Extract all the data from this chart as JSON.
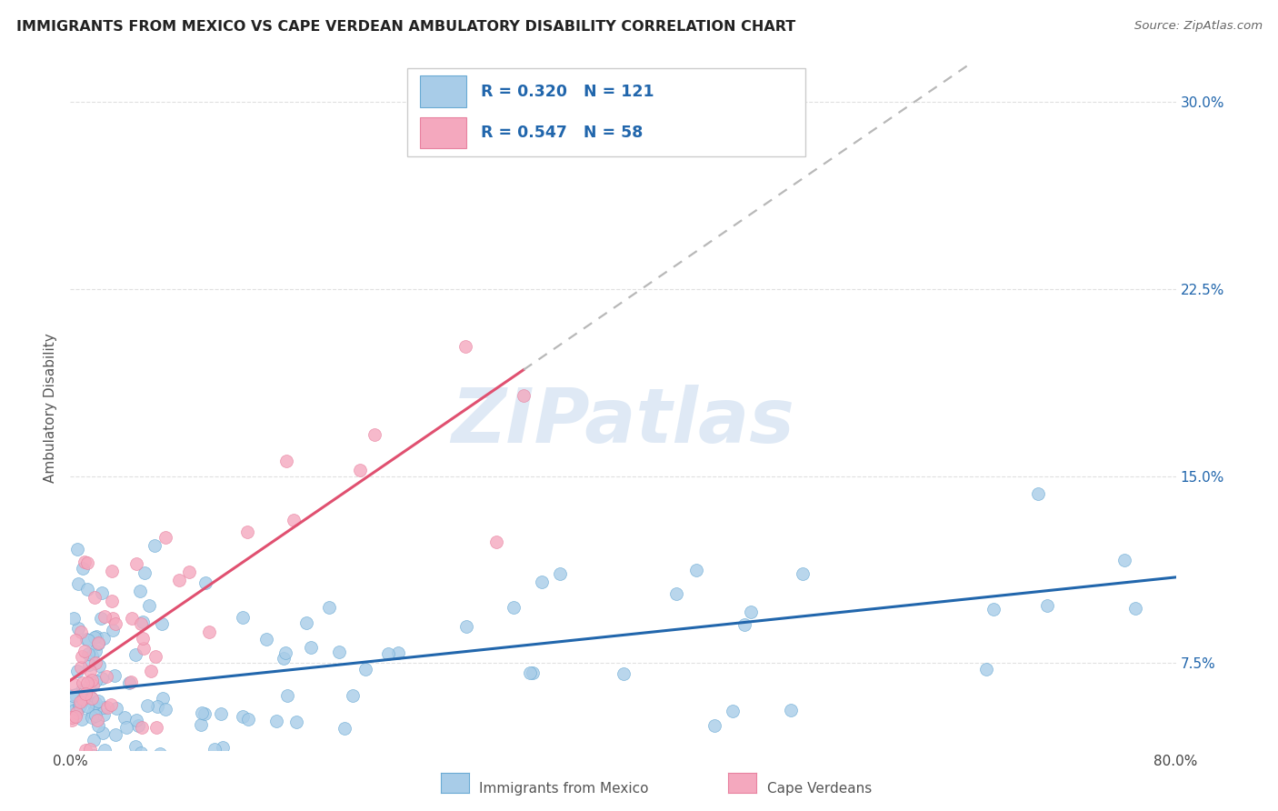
{
  "title": "IMMIGRANTS FROM MEXICO VS CAPE VERDEAN AMBULATORY DISABILITY CORRELATION CHART",
  "source": "Source: ZipAtlas.com",
  "ylabel": "Ambulatory Disability",
  "yticks": [
    "7.5%",
    "15.0%",
    "22.5%",
    "30.0%"
  ],
  "ytick_vals": [
    0.075,
    0.15,
    0.225,
    0.3
  ],
  "legend_label1": "Immigrants from Mexico",
  "legend_label2": "Cape Verdeans",
  "R1": "0.320",
  "N1": "121",
  "R2": "0.547",
  "N2": "58",
  "color_blue_fill": "#a8cce8",
  "color_blue_edge": "#6aaad4",
  "color_blue_line": "#2166ac",
  "color_pink_fill": "#f4a8be",
  "color_pink_edge": "#e882a0",
  "color_pink_line": "#e05070",
  "color_dashed": "#b8b8b8",
  "watermark": "ZIPatlas",
  "background": "#ffffff",
  "grid_color": "#e0e0e0",
  "xlim": [
    0.0,
    0.8
  ],
  "ylim": [
    0.04,
    0.315
  ],
  "blue_reg_m": 0.058,
  "blue_reg_b": 0.063,
  "pink_reg_m": 0.38,
  "pink_reg_b": 0.068
}
